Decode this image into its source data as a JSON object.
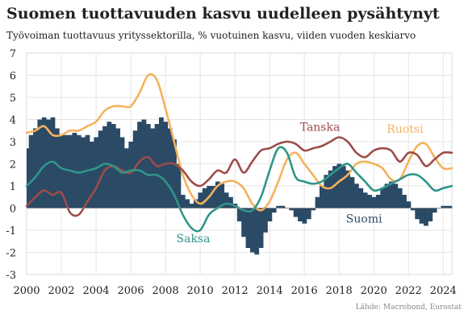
{
  "title": "Suomen tuottavuuden kasvu uudelleen pysähtynyt",
  "subtitle": "Työvoiman tuottavuus yrityssektorilla, % vuotuinen kasvu, viiden vuoden keskiarvo",
  "source": "Lähde: Macrobond, Eurostat",
  "chart_data": {
    "type": "line",
    "xlim": [
      2000,
      2024.5
    ],
    "ylim": [
      -3,
      7
    ],
    "grid": true,
    "x_ticks": [
      "2000",
      "2002",
      "2004",
      "2006",
      "2008",
      "2010",
      "2012",
      "2014",
      "2016",
      "2018",
      "2020",
      "2022",
      "2024"
    ],
    "y_ticks": [
      "-3",
      "-2",
      "-1",
      "0",
      "1",
      "2",
      "3",
      "4",
      "5",
      "6",
      "7"
    ],
    "series": [
      {
        "name": "Suomi",
        "render": "bar",
        "color": "#2b4a66",
        "x": [
          2000.0,
          2000.25,
          2000.5,
          2000.75,
          2001.0,
          2001.25,
          2001.5,
          2001.75,
          2002.0,
          2002.25,
          2002.5,
          2002.75,
          2003.0,
          2003.25,
          2003.5,
          2003.75,
          2004.0,
          2004.25,
          2004.5,
          2004.75,
          2005.0,
          2005.25,
          2005.5,
          2005.75,
          2006.0,
          2006.25,
          2006.5,
          2006.75,
          2007.0,
          2007.25,
          2007.5,
          2007.75,
          2008.0,
          2008.25,
          2008.5,
          2008.75,
          2009.0,
          2009.25,
          2009.5,
          2009.75,
          2010.0,
          2010.25,
          2010.5,
          2010.75,
          2011.0,
          2011.25,
          2011.5,
          2011.75,
          2012.0,
          2012.25,
          2012.5,
          2012.75,
          2013.0,
          2013.25,
          2013.5,
          2013.75,
          2014.0,
          2014.25,
          2014.5,
          2014.75,
          2015.0,
          2015.25,
          2015.5,
          2015.75,
          2016.0,
          2016.25,
          2016.5,
          2016.75,
          2017.0,
          2017.25,
          2017.5,
          2017.75,
          2018.0,
          2018.25,
          2018.5,
          2018.75,
          2019.0,
          2019.25,
          2019.5,
          2019.75,
          2020.0,
          2020.25,
          2020.5,
          2020.75,
          2021.0,
          2021.25,
          2021.5,
          2021.75,
          2022.0,
          2022.25,
          2022.5,
          2022.75,
          2023.0,
          2023.25,
          2023.5,
          2023.75,
          2024.0,
          2024.25,
          2024.5
        ],
        "values": [
          2.7,
          3.3,
          3.6,
          4.0,
          4.1,
          4.0,
          4.1,
          3.6,
          3.3,
          3.3,
          3.3,
          3.4,
          3.3,
          3.2,
          3.3,
          3.0,
          3.2,
          3.5,
          3.7,
          3.9,
          3.8,
          3.6,
          3.2,
          2.7,
          3.0,
          3.5,
          3.9,
          4.0,
          3.8,
          3.6,
          3.8,
          4.1,
          3.9,
          3.6,
          3.1,
          2.0,
          0.6,
          0.4,
          0.2,
          0.4,
          0.7,
          0.9,
          1.0,
          1.0,
          1.2,
          1.1,
          0.7,
          0.5,
          0.2,
          -0.6,
          -1.3,
          -1.8,
          -2.0,
          -2.1,
          -1.8,
          -1.1,
          -0.6,
          -0.2,
          0.1,
          0.1,
          0.0,
          -0.1,
          -0.4,
          -0.6,
          -0.7,
          -0.5,
          -0.1,
          0.5,
          1.0,
          1.5,
          1.7,
          1.9,
          2.0,
          1.9,
          1.7,
          1.4,
          1.1,
          0.9,
          0.7,
          0.6,
          0.5,
          0.6,
          0.9,
          1.1,
          1.2,
          1.1,
          0.9,
          0.6,
          0.3,
          -0.1,
          -0.5,
          -0.7,
          -0.8,
          -0.6,
          -0.2,
          0.0,
          0.1,
          0.1,
          0.1
        ]
      },
      {
        "name": "Ruotsi",
        "render": "line",
        "color": "#f5b25b",
        "x": [
          2000.0,
          2000.5,
          2001.0,
          2001.5,
          2002.0,
          2002.5,
          2003.0,
          2003.5,
          2004.0,
          2004.5,
          2005.0,
          2005.5,
          2006.0,
          2006.5,
          2007.0,
          2007.5,
          2008.0,
          2008.5,
          2009.0,
          2009.5,
          2010.0,
          2010.5,
          2011.0,
          2011.5,
          2012.0,
          2012.5,
          2013.0,
          2013.5,
          2014.0,
          2014.5,
          2015.0,
          2015.5,
          2016.0,
          2016.5,
          2017.0,
          2017.5,
          2018.0,
          2018.5,
          2019.0,
          2019.5,
          2020.0,
          2020.5,
          2021.0,
          2021.5,
          2022.0,
          2022.5,
          2023.0,
          2023.5,
          2024.0,
          2024.5
        ],
        "values": [
          3.4,
          3.5,
          3.7,
          3.3,
          3.3,
          3.5,
          3.5,
          3.7,
          3.9,
          4.4,
          4.6,
          4.6,
          4.6,
          5.2,
          6.0,
          5.8,
          4.5,
          3.0,
          1.5,
          0.6,
          0.2,
          0.5,
          1.0,
          1.2,
          1.2,
          0.9,
          0.2,
          -0.1,
          0.3,
          1.2,
          2.2,
          2.5,
          2.0,
          1.5,
          1.0,
          0.9,
          1.2,
          1.5,
          2.0,
          2.1,
          2.0,
          1.8,
          1.3,
          1.3,
          2.1,
          2.8,
          2.9,
          2.3,
          1.8,
          1.8
        ]
      },
      {
        "name": "Tanska",
        "render": "line",
        "color": "#9e4c4a",
        "x": [
          2000.0,
          2000.5,
          2001.0,
          2001.5,
          2002.0,
          2002.5,
          2003.0,
          2003.5,
          2004.0,
          2004.5,
          2005.0,
          2005.5,
          2006.0,
          2006.5,
          2007.0,
          2007.5,
          2008.0,
          2008.5,
          2009.0,
          2009.5,
          2010.0,
          2010.5,
          2011.0,
          2011.5,
          2012.0,
          2012.5,
          2013.0,
          2013.5,
          2014.0,
          2014.5,
          2015.0,
          2015.5,
          2016.0,
          2016.5,
          2017.0,
          2017.5,
          2018.0,
          2018.5,
          2019.0,
          2019.5,
          2020.0,
          2020.5,
          2021.0,
          2021.5,
          2022.0,
          2022.5,
          2023.0,
          2023.5,
          2024.0,
          2024.5
        ],
        "values": [
          0.1,
          0.5,
          0.8,
          0.6,
          0.7,
          -0.2,
          -0.3,
          0.3,
          0.9,
          1.7,
          1.9,
          1.7,
          1.6,
          2.1,
          2.3,
          1.9,
          2.0,
          2.0,
          1.7,
          1.2,
          1.0,
          1.3,
          1.7,
          1.6,
          2.2,
          1.6,
          2.1,
          2.6,
          2.7,
          2.9,
          3.0,
          2.9,
          2.6,
          2.7,
          2.8,
          3.0,
          3.2,
          3.0,
          2.5,
          2.3,
          2.6,
          2.7,
          2.6,
          2.1,
          2.5,
          2.4,
          1.9,
          2.2,
          2.5,
          2.5
        ]
      },
      {
        "name": "Saksa",
        "render": "line",
        "color": "#2f9689",
        "x": [
          2000.0,
          2000.5,
          2001.0,
          2001.5,
          2002.0,
          2002.5,
          2003.0,
          2003.5,
          2004.0,
          2004.5,
          2005.0,
          2005.5,
          2006.0,
          2006.5,
          2007.0,
          2007.5,
          2008.0,
          2008.5,
          2009.0,
          2009.5,
          2010.0,
          2010.5,
          2011.0,
          2011.5,
          2012.0,
          2012.5,
          2013.0,
          2013.5,
          2014.0,
          2014.5,
          2015.0,
          2015.5,
          2016.0,
          2016.5,
          2017.0,
          2017.5,
          2018.0,
          2018.5,
          2019.0,
          2019.5,
          2020.0,
          2020.5,
          2021.0,
          2021.5,
          2022.0,
          2022.5,
          2023.0,
          2023.5,
          2024.0,
          2024.5
        ],
        "values": [
          1.0,
          1.4,
          1.9,
          2.1,
          1.8,
          1.7,
          1.6,
          1.7,
          1.8,
          2.0,
          1.9,
          1.6,
          1.7,
          1.7,
          1.5,
          1.5,
          1.2,
          0.6,
          -0.3,
          -0.9,
          -1.0,
          -0.3,
          0.0,
          0.2,
          0.1,
          -0.1,
          -0.1,
          0.5,
          1.7,
          2.7,
          2.5,
          1.4,
          1.2,
          1.1,
          1.2,
          1.5,
          1.8,
          2.0,
          1.6,
          1.2,
          0.8,
          0.9,
          1.1,
          1.3,
          1.5,
          1.5,
          1.2,
          0.8,
          0.9,
          1.0
        ]
      }
    ]
  }
}
